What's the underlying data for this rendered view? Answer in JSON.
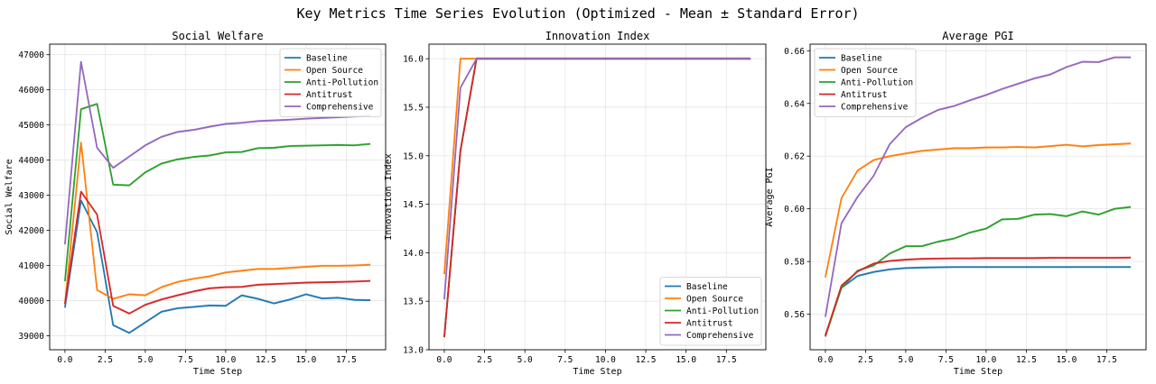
{
  "suptitle": "Key Metrics Time Series Evolution (Optimized - Mean ± Standard Error)",
  "series_colors": {
    "Baseline": "#1f77b4",
    "Open Source": "#ff7f0e",
    "Anti-Pollution": "#2ca02c",
    "Antitrust": "#d62728",
    "Comprehensive": "#9467bd"
  },
  "chart_data": [
    {
      "type": "line",
      "title": "Social Welfare",
      "xlabel": "Time Step",
      "ylabel": "Social Welfare",
      "x": [
        0,
        1,
        2,
        3,
        4,
        5,
        6,
        7,
        8,
        9,
        10,
        11,
        12,
        13,
        14,
        15,
        16,
        17,
        18,
        19
      ],
      "xlim": [
        -0.95,
        19.95
      ],
      "ylim": [
        38600,
        47300
      ],
      "xticks": [
        "0.0",
        "2.5",
        "5.0",
        "7.5",
        "10.0",
        "12.5",
        "15.0",
        "17.5"
      ],
      "yticks": [
        "39000",
        "40000",
        "41000",
        "42000",
        "43000",
        "44000",
        "45000",
        "46000",
        "47000"
      ],
      "grid": true,
      "legend": "upper right",
      "series": [
        {
          "name": "Baseline",
          "values": [
            39800,
            42850,
            41950,
            39300,
            39080,
            39380,
            39680,
            39780,
            39820,
            39860,
            39850,
            40150,
            40050,
            39920,
            40030,
            40180,
            40060,
            40080,
            40020,
            40010
          ]
        },
        {
          "name": "Open Source",
          "values": [
            39900,
            44500,
            40300,
            40050,
            40180,
            40150,
            40380,
            40530,
            40620,
            40690,
            40800,
            40850,
            40900,
            40900,
            40930,
            40960,
            40990,
            40990,
            41000,
            41020
          ]
        },
        {
          "name": "Anti-Pollution",
          "values": [
            40550,
            45450,
            45600,
            43300,
            43280,
            43650,
            43900,
            44020,
            44090,
            44130,
            44220,
            44230,
            44340,
            44350,
            44400,
            44410,
            44420,
            44430,
            44420,
            44460
          ]
        },
        {
          "name": "Antitrust",
          "values": [
            39900,
            43100,
            42450,
            39850,
            39630,
            39880,
            40030,
            40150,
            40260,
            40350,
            40380,
            40390,
            40450,
            40470,
            40490,
            40510,
            40520,
            40530,
            40540,
            40560
          ]
        },
        {
          "name": "Comprehensive",
          "values": [
            41600,
            46800,
            44350,
            43780,
            44100,
            44420,
            44660,
            44800,
            44860,
            44950,
            45030,
            45060,
            45110,
            45130,
            45150,
            45180,
            45200,
            45220,
            45240,
            45270
          ]
        }
      ]
    },
    {
      "type": "line",
      "title": "Innovation Index",
      "xlabel": "Time Step",
      "ylabel": "Innovation Index",
      "x": [
        0,
        1,
        2,
        3,
        4,
        5,
        6,
        7,
        8,
        9,
        10,
        11,
        12,
        13,
        14,
        15,
        16,
        17,
        18,
        19
      ],
      "xlim": [
        -0.95,
        19.95
      ],
      "ylim": [
        13.0,
        16.15
      ],
      "xticks": [
        "0.0",
        "2.5",
        "5.0",
        "7.5",
        "10.0",
        "12.5",
        "15.0",
        "17.5"
      ],
      "yticks": [
        "13.0",
        "13.5",
        "14.0",
        "14.5",
        "15.0",
        "15.5",
        "16.0"
      ],
      "grid": true,
      "legend": "lower right",
      "series": [
        {
          "name": "Baseline",
          "values": [
            13.13,
            15.05,
            16,
            16,
            16,
            16,
            16,
            16,
            16,
            16,
            16,
            16,
            16,
            16,
            16,
            16,
            16,
            16,
            16,
            16
          ]
        },
        {
          "name": "Open Source",
          "values": [
            13.78,
            16,
            16,
            16,
            16,
            16,
            16,
            16,
            16,
            16,
            16,
            16,
            16,
            16,
            16,
            16,
            16,
            16,
            16,
            16
          ]
        },
        {
          "name": "Anti-Pollution",
          "values": [
            13.13,
            15.05,
            16,
            16,
            16,
            16,
            16,
            16,
            16,
            16,
            16,
            16,
            16,
            16,
            16,
            16,
            16,
            16,
            16,
            16
          ]
        },
        {
          "name": "Antitrust",
          "values": [
            13.13,
            15.05,
            16,
            16,
            16,
            16,
            16,
            16,
            16,
            16,
            16,
            16,
            16,
            16,
            16,
            16,
            16,
            16,
            16,
            16
          ]
        },
        {
          "name": "Comprehensive",
          "values": [
            13.52,
            15.7,
            16,
            16,
            16,
            16,
            16,
            16,
            16,
            16,
            16,
            16,
            16,
            16,
            16,
            16,
            16,
            16,
            16,
            16
          ]
        }
      ]
    },
    {
      "type": "line",
      "title": "Average PGI",
      "xlabel": "Time Step",
      "ylabel": "Average PGI",
      "x": [
        0,
        1,
        2,
        3,
        4,
        5,
        6,
        7,
        8,
        9,
        10,
        11,
        12,
        13,
        14,
        15,
        16,
        17,
        18,
        19
      ],
      "xlim": [
        -0.95,
        19.95
      ],
      "ylim": [
        0.5465,
        0.6625
      ],
      "xticks": [
        "0.0",
        "2.5",
        "5.0",
        "7.5",
        "10.0",
        "12.5",
        "15.0",
        "17.5"
      ],
      "yticks": [
        "0.56",
        "0.58",
        "0.60",
        "0.62",
        "0.64",
        "0.66"
      ],
      "grid": true,
      "legend": "upper left",
      "series": [
        {
          "name": "Baseline",
          "values": [
            0.552,
            0.57,
            0.5745,
            0.576,
            0.577,
            0.5775,
            0.5777,
            0.5778,
            0.5779,
            0.5779,
            0.5779,
            0.5779,
            0.5779,
            0.5779,
            0.5779,
            0.5779,
            0.5779,
            0.5779,
            0.5779,
            0.5779
          ]
        },
        {
          "name": "Open Source",
          "values": [
            0.574,
            0.604,
            0.6145,
            0.6185,
            0.62,
            0.621,
            0.622,
            0.6225,
            0.623,
            0.623,
            0.6233,
            0.6233,
            0.6235,
            0.6233,
            0.6238,
            0.6243,
            0.6237,
            0.6242,
            0.6245,
            0.6248
          ]
        },
        {
          "name": "Anti-Pollution",
          "values": [
            0.5515,
            0.57,
            0.5765,
            0.5785,
            0.583,
            0.5858,
            0.5858,
            0.5875,
            0.5887,
            0.591,
            0.5925,
            0.596,
            0.5962,
            0.5978,
            0.598,
            0.5972,
            0.599,
            0.5978,
            0.6,
            0.6007
          ]
        },
        {
          "name": "Antitrust",
          "values": [
            0.5518,
            0.5708,
            0.5762,
            0.5792,
            0.5802,
            0.5807,
            0.581,
            0.5811,
            0.5812,
            0.5812,
            0.5813,
            0.5813,
            0.5813,
            0.5813,
            0.5814,
            0.5814,
            0.5814,
            0.5814,
            0.5814,
            0.5815
          ]
        },
        {
          "name": "Comprehensive",
          "values": [
            0.559,
            0.5945,
            0.6045,
            0.6125,
            0.6245,
            0.631,
            0.6345,
            0.6375,
            0.639,
            0.6412,
            0.6432,
            0.6455,
            0.6475,
            0.6495,
            0.651,
            0.6538,
            0.6558,
            0.6557,
            0.6575,
            0.6575
          ]
        }
      ]
    }
  ]
}
